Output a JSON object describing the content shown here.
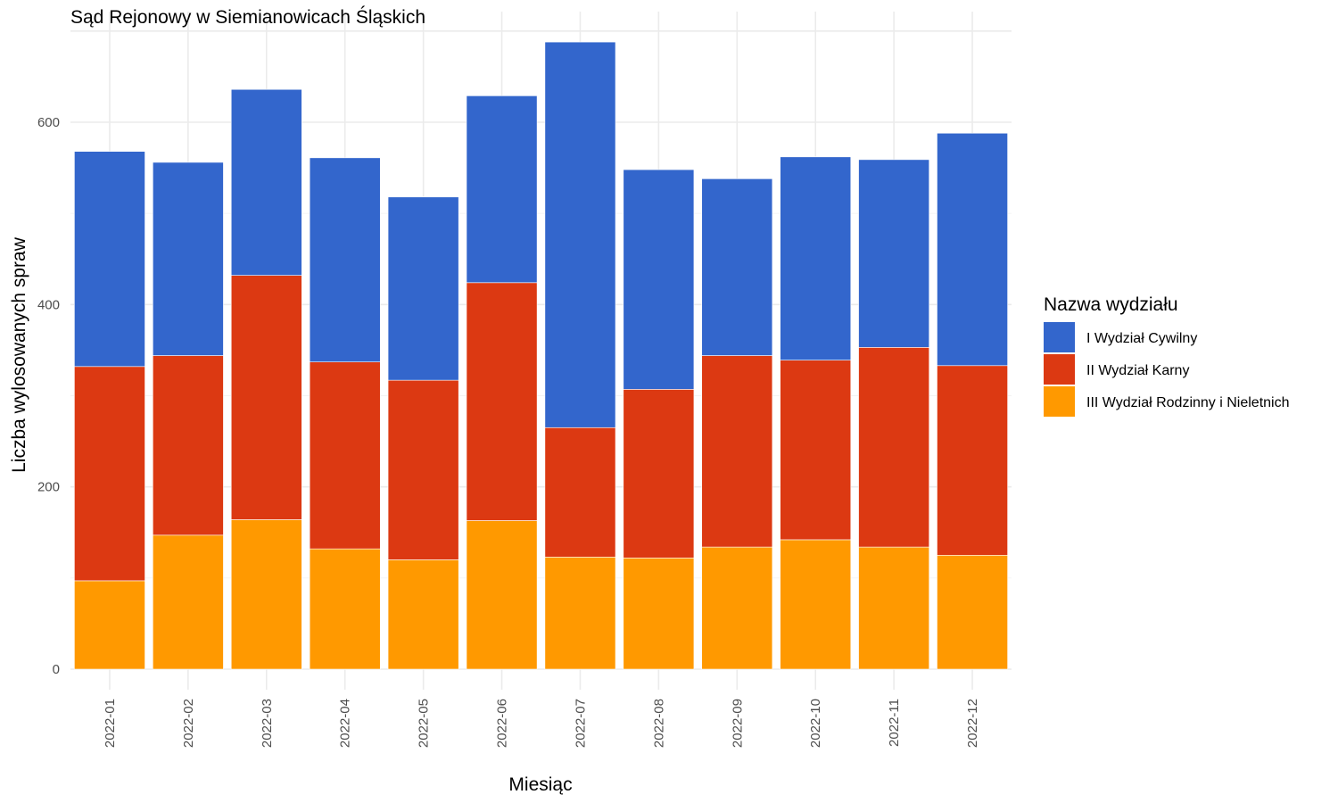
{
  "chart_data": {
    "type": "bar",
    "stacked": true,
    "title": "Sąd Rejonowy w Siemianowicach Śląskich",
    "xlabel": "Miesiąc",
    "ylabel": "Liczba wylosowanych spraw",
    "ylim": [
      0,
      700
    ],
    "yticks": [
      0,
      200,
      400,
      600
    ],
    "grid": true,
    "legend": {
      "title": "Nazwa wydziału",
      "position": "right"
    },
    "categories": [
      "2022-01",
      "2022-02",
      "2022-03",
      "2022-04",
      "2022-05",
      "2022-06",
      "2022-07",
      "2022-08",
      "2022-09",
      "2022-10",
      "2022-11",
      "2022-12"
    ],
    "series": [
      {
        "name": "III Wydział Rodzinny i Nieletnich",
        "color": "#FF9900",
        "values": [
          97,
          147,
          164,
          132,
          120,
          163,
          123,
          122,
          134,
          142,
          134,
          125
        ]
      },
      {
        "name": "II Wydział Karny",
        "color": "#DC3912",
        "values": [
          235,
          197,
          268,
          205,
          197,
          261,
          142,
          185,
          210,
          197,
          219,
          208
        ]
      },
      {
        "name": "I Wydział Cywilny",
        "color": "#3366CC",
        "values": [
          236,
          212,
          204,
          224,
          201,
          205,
          423,
          241,
          194,
          223,
          206,
          255
        ]
      }
    ],
    "legend_order": [
      "I Wydział Cywilny",
      "II Wydział Karny",
      "III Wydział Rodzinny i Nieletnich"
    ]
  }
}
